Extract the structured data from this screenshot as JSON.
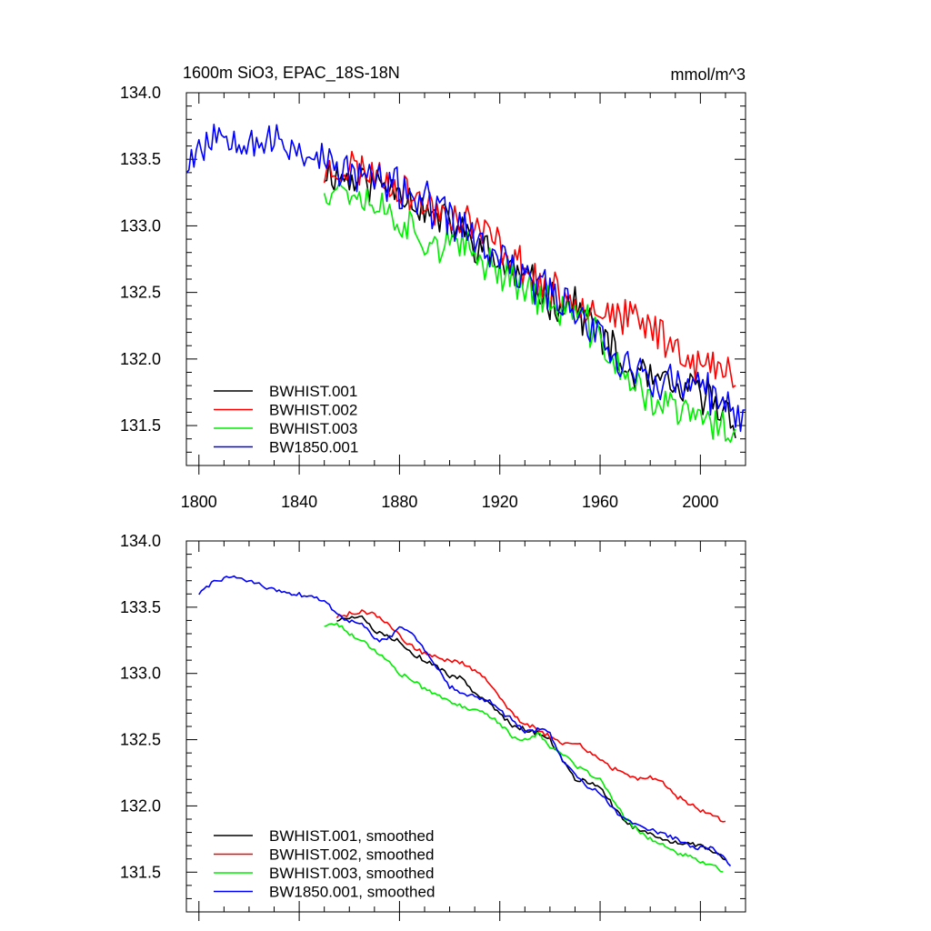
{
  "chart_data": [
    {
      "type": "line",
      "title": "1600m SiO3, EPAC_18S-18N",
      "units": "mmol/m^3",
      "xlim": [
        1795,
        2018
      ],
      "ylim": [
        131.2,
        134.0
      ],
      "x_ticks": [
        1800,
        1840,
        1880,
        1920,
        1960,
        2000
      ],
      "x_tick_labels": [
        "1800",
        "1840",
        "1880",
        "1920",
        "1960",
        "2000"
      ],
      "y_ticks": [
        131.5,
        132.0,
        132.5,
        133.0,
        133.5,
        134.0
      ],
      "y_tick_labels": [
        "131.5",
        "132.0",
        "132.5",
        "133.0",
        "133.5",
        "134.0"
      ],
      "legend": "bottom-left",
      "series": [
        {
          "name": "BWHIST.001",
          "color": "#000000",
          "x_start": 1850,
          "x_end": 2014,
          "anchors": [
            [
              1850,
              133.42
            ],
            [
              1860,
              133.35
            ],
            [
              1870,
              133.32
            ],
            [
              1880,
              133.3
            ],
            [
              1890,
              133.1
            ],
            [
              1900,
              133.02
            ],
            [
              1910,
              132.88
            ],
            [
              1920,
              132.72
            ],
            [
              1930,
              132.6
            ],
            [
              1940,
              132.45
            ],
            [
              1950,
              132.4
            ],
            [
              1960,
              132.2
            ],
            [
              1970,
              131.9
            ],
            [
              1980,
              131.85
            ],
            [
              1990,
              131.75
            ],
            [
              2000,
              131.75
            ],
            [
              2014,
              131.55
            ]
          ],
          "noise": 0.13,
          "seed": 11
        },
        {
          "name": "BWHIST.002",
          "color": "#ff0000",
          "x_start": 1850,
          "x_end": 2014,
          "anchors": [
            [
              1850,
              133.4
            ],
            [
              1860,
              133.45
            ],
            [
              1870,
              133.4
            ],
            [
              1880,
              133.3
            ],
            [
              1890,
              133.15
            ],
            [
              1900,
              133.1
            ],
            [
              1910,
              133.0
            ],
            [
              1920,
              132.85
            ],
            [
              1930,
              132.68
            ],
            [
              1940,
              132.5
            ],
            [
              1950,
              132.45
            ],
            [
              1960,
              132.38
            ],
            [
              1970,
              132.3
            ],
            [
              1980,
              132.25
            ],
            [
              1990,
              132.1
            ],
            [
              2000,
              131.95
            ],
            [
              2014,
              131.88
            ]
          ],
          "noise": 0.13,
          "seed": 23
        },
        {
          "name": "BWHIST.003",
          "color": "#00ee00",
          "x_start": 1850,
          "x_end": 2014,
          "anchors": [
            [
              1850,
              133.3
            ],
            [
              1860,
              133.28
            ],
            [
              1870,
              133.18
            ],
            [
              1880,
              133.05
            ],
            [
              1890,
              132.9
            ],
            [
              1900,
              132.85
            ],
            [
              1910,
              132.78
            ],
            [
              1920,
              132.68
            ],
            [
              1930,
              132.55
            ],
            [
              1940,
              132.4
            ],
            [
              1950,
              132.35
            ],
            [
              1960,
              132.15
            ],
            [
              1970,
              131.85
            ],
            [
              1980,
              131.7
            ],
            [
              1990,
              131.62
            ],
            [
              2000,
              131.55
            ],
            [
              2014,
              131.45
            ]
          ],
          "noise": 0.13,
          "seed": 37
        },
        {
          "name": "BW1850.001",
          "color": "#0000ff",
          "x_start": 1795,
          "x_end": 2018,
          "anchors": [
            [
              1795,
              133.5
            ],
            [
              1805,
              133.68
            ],
            [
              1815,
              133.7
            ],
            [
              1825,
              133.64
            ],
            [
              1835,
              133.6
            ],
            [
              1845,
              133.55
            ],
            [
              1855,
              133.42
            ],
            [
              1865,
              133.38
            ],
            [
              1875,
              133.3
            ],
            [
              1885,
              133.25
            ],
            [
              1895,
              133.1
            ],
            [
              1905,
              133.0
            ],
            [
              1915,
              132.8
            ],
            [
              1925,
              132.68
            ],
            [
              1935,
              132.55
            ],
            [
              1945,
              132.45
            ],
            [
              1955,
              132.3
            ],
            [
              1965,
              132.05
            ],
            [
              1975,
              131.88
            ],
            [
              1985,
              131.82
            ],
            [
              1995,
              131.8
            ],
            [
              2005,
              131.72
            ],
            [
              2018,
              131.5
            ]
          ],
          "noise": 0.14,
          "seed": 53
        }
      ]
    },
    {
      "type": "line",
      "title": "",
      "xlim": [
        1795,
        2018
      ],
      "ylim": [
        131.2,
        134.0
      ],
      "x_ticks": [
        1800,
        1840,
        1880,
        1920,
        1960,
        2000
      ],
      "y_ticks": [
        131.5,
        132.0,
        132.5,
        133.0,
        133.5,
        134.0
      ],
      "y_tick_labels": [
        "131.5",
        "132.0",
        "132.5",
        "133.0",
        "133.5",
        "134.0"
      ],
      "legend": "bottom-left",
      "series": [
        {
          "name": "BWHIST.001, smoothed",
          "color": "#000000",
          "x_start": 1855,
          "x_end": 2010,
          "anchors": [
            [
              1855,
              133.4
            ],
            [
              1860,
              133.43
            ],
            [
              1865,
              133.42
            ],
            [
              1870,
              133.32
            ],
            [
              1875,
              133.28
            ],
            [
              1880,
              133.25
            ],
            [
              1885,
              133.15
            ],
            [
              1890,
              133.1
            ],
            [
              1895,
              133.05
            ],
            [
              1900,
              132.98
            ],
            [
              1905,
              132.97
            ],
            [
              1910,
              132.85
            ],
            [
              1915,
              132.8
            ],
            [
              1920,
              132.7
            ],
            [
              1925,
              132.6
            ],
            [
              1930,
              132.58
            ],
            [
              1935,
              132.55
            ],
            [
              1940,
              132.5
            ],
            [
              1945,
              132.35
            ],
            [
              1950,
              132.2
            ],
            [
              1955,
              132.18
            ],
            [
              1960,
              132.15
            ],
            [
              1965,
              132.0
            ],
            [
              1970,
              131.88
            ],
            [
              1975,
              131.82
            ],
            [
              1980,
              131.8
            ],
            [
              1985,
              131.75
            ],
            [
              1990,
              131.72
            ],
            [
              1995,
              131.72
            ],
            [
              2000,
              131.7
            ],
            [
              2005,
              131.66
            ],
            [
              2010,
              131.6
            ]
          ],
          "noise": 0.015,
          "seed": 5
        },
        {
          "name": "BWHIST.002, smoothed",
          "color": "#ff0000",
          "x_start": 1855,
          "x_end": 2010,
          "anchors": [
            [
              1855,
              133.43
            ],
            [
              1860,
              133.45
            ],
            [
              1865,
              133.47
            ],
            [
              1870,
              133.45
            ],
            [
              1875,
              133.38
            ],
            [
              1880,
              133.28
            ],
            [
              1885,
              133.2
            ],
            [
              1890,
              133.15
            ],
            [
              1895,
              133.12
            ],
            [
              1900,
              133.1
            ],
            [
              1905,
              133.08
            ],
            [
              1910,
              133.02
            ],
            [
              1915,
              132.95
            ],
            [
              1920,
              132.82
            ],
            [
              1925,
              132.7
            ],
            [
              1930,
              132.62
            ],
            [
              1935,
              132.58
            ],
            [
              1940,
              132.52
            ],
            [
              1945,
              132.48
            ],
            [
              1950,
              132.48
            ],
            [
              1955,
              132.42
            ],
            [
              1960,
              132.35
            ],
            [
              1965,
              132.28
            ],
            [
              1970,
              132.25
            ],
            [
              1975,
              132.2
            ],
            [
              1980,
              132.22
            ],
            [
              1985,
              132.18
            ],
            [
              1990,
              132.08
            ],
            [
              1995,
              132.02
            ],
            [
              2000,
              131.97
            ],
            [
              2005,
              131.93
            ],
            [
              2010,
              131.88
            ]
          ],
          "noise": 0.015,
          "seed": 9
        },
        {
          "name": "BWHIST.003, smoothed",
          "color": "#00ee00",
          "x_start": 1850,
          "x_end": 2009,
          "anchors": [
            [
              1850,
              133.36
            ],
            [
              1855,
              133.38
            ],
            [
              1860,
              133.3
            ],
            [
              1865,
              133.25
            ],
            [
              1870,
              133.18
            ],
            [
              1875,
              133.1
            ],
            [
              1880,
              133.0
            ],
            [
              1885,
              132.95
            ],
            [
              1890,
              132.88
            ],
            [
              1895,
              132.85
            ],
            [
              1900,
              132.78
            ],
            [
              1905,
              132.75
            ],
            [
              1910,
              132.72
            ],
            [
              1915,
              132.7
            ],
            [
              1920,
              132.62
            ],
            [
              1925,
              132.52
            ],
            [
              1930,
              132.5
            ],
            [
              1935,
              132.55
            ],
            [
              1940,
              132.45
            ],
            [
              1945,
              132.4
            ],
            [
              1950,
              132.3
            ],
            [
              1955,
              132.25
            ],
            [
              1960,
              132.2
            ],
            [
              1965,
              132.05
            ],
            [
              1970,
              131.9
            ],
            [
              1975,
              131.82
            ],
            [
              1980,
              131.75
            ],
            [
              1985,
              131.7
            ],
            [
              1990,
              131.65
            ],
            [
              1995,
              131.62
            ],
            [
              2000,
              131.58
            ],
            [
              2005,
              131.55
            ],
            [
              2009,
              131.5
            ]
          ],
          "noise": 0.015,
          "seed": 17
        },
        {
          "name": "BW1850.001, smoothed",
          "color": "#0000ff",
          "x_start": 1800,
          "x_end": 2012,
          "anchors": [
            [
              1800,
              133.6
            ],
            [
              1803,
              133.65
            ],
            [
              1807,
              133.7
            ],
            [
              1812,
              133.73
            ],
            [
              1817,
              133.72
            ],
            [
              1822,
              133.68
            ],
            [
              1827,
              133.65
            ],
            [
              1832,
              133.62
            ],
            [
              1838,
              133.6
            ],
            [
              1844,
              133.58
            ],
            [
              1850,
              133.55
            ],
            [
              1855,
              133.45
            ],
            [
              1860,
              133.4
            ],
            [
              1865,
              133.38
            ],
            [
              1870,
              133.25
            ],
            [
              1875,
              133.25
            ],
            [
              1880,
              133.35
            ],
            [
              1885,
              133.3
            ],
            [
              1890,
              133.18
            ],
            [
              1895,
              133.05
            ],
            [
              1900,
              132.9
            ],
            [
              1905,
              132.85
            ],
            [
              1910,
              132.82
            ],
            [
              1915,
              132.8
            ],
            [
              1920,
              132.72
            ],
            [
              1925,
              132.65
            ],
            [
              1930,
              132.55
            ],
            [
              1935,
              132.58
            ],
            [
              1940,
              132.55
            ],
            [
              1945,
              132.35
            ],
            [
              1950,
              132.25
            ],
            [
              1955,
              132.15
            ],
            [
              1960,
              132.1
            ],
            [
              1965,
              131.98
            ],
            [
              1970,
              131.9
            ],
            [
              1975,
              131.85
            ],
            [
              1980,
              131.82
            ],
            [
              1985,
              131.8
            ],
            [
              1990,
              131.75
            ],
            [
              1995,
              131.7
            ],
            [
              2000,
              131.68
            ],
            [
              2005,
              131.68
            ],
            [
              2010,
              131.6
            ],
            [
              2012,
              131.55
            ]
          ],
          "noise": 0.015,
          "seed": 29
        }
      ]
    }
  ]
}
